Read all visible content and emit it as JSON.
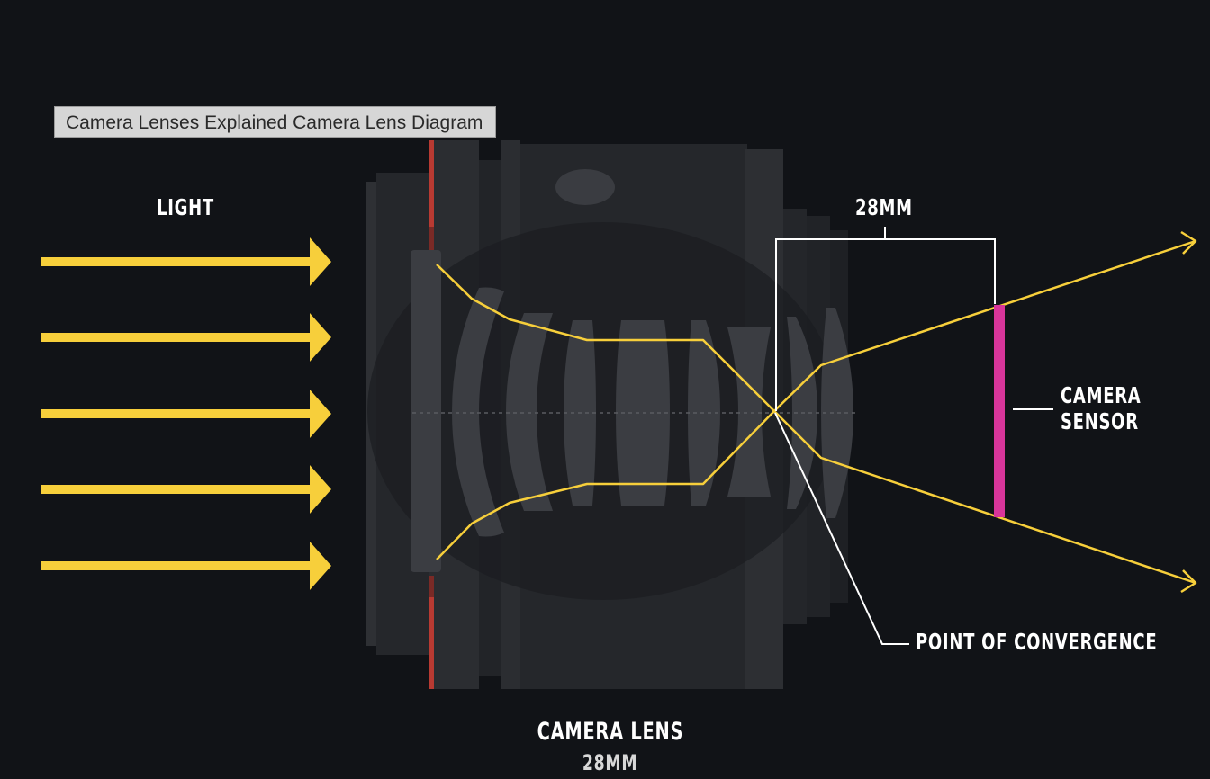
{
  "tooltip": "Camera Lenses Explained Camera Lens Diagram",
  "labels": {
    "light": "LIGHT",
    "focal_length": "28MM",
    "camera_sensor_line1": "CAMERA",
    "camera_sensor_line2": "SENSOR",
    "point_of_convergence": "POINT OF CONVERGENCE",
    "camera_lens": "CAMERA LENS",
    "lens_focal": "28MM"
  },
  "colors": {
    "background": "#111317",
    "light_ray": "#f7cf3b",
    "sensor": "#d8359a",
    "aperture_ring": "#b83a32",
    "lens_body": "#2a2c30",
    "lens_element": "#3b3d42",
    "annotation": "#ffffff"
  },
  "light_arrow_count": 5
}
